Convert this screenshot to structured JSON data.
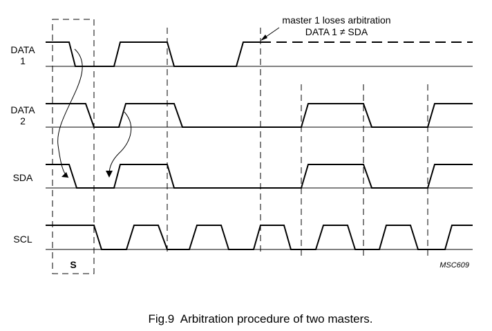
{
  "signals": [
    {
      "id": "data1",
      "label_line1": "DATA",
      "label_line2": "1"
    },
    {
      "id": "data2",
      "label_line1": "DATA",
      "label_line2": "2"
    },
    {
      "id": "sda",
      "label_line1": "SDA",
      "label_line2": ""
    },
    {
      "id": "scl",
      "label_line1": "SCL",
      "label_line2": ""
    }
  ],
  "annotation": {
    "line1": "master 1 loses arbitration",
    "line2": "DATA 1 ≠ SDA"
  },
  "start_label": "S",
  "figure_code": "MSC609",
  "caption": "Fig.9  Arbitration procedure of two masters."
}
